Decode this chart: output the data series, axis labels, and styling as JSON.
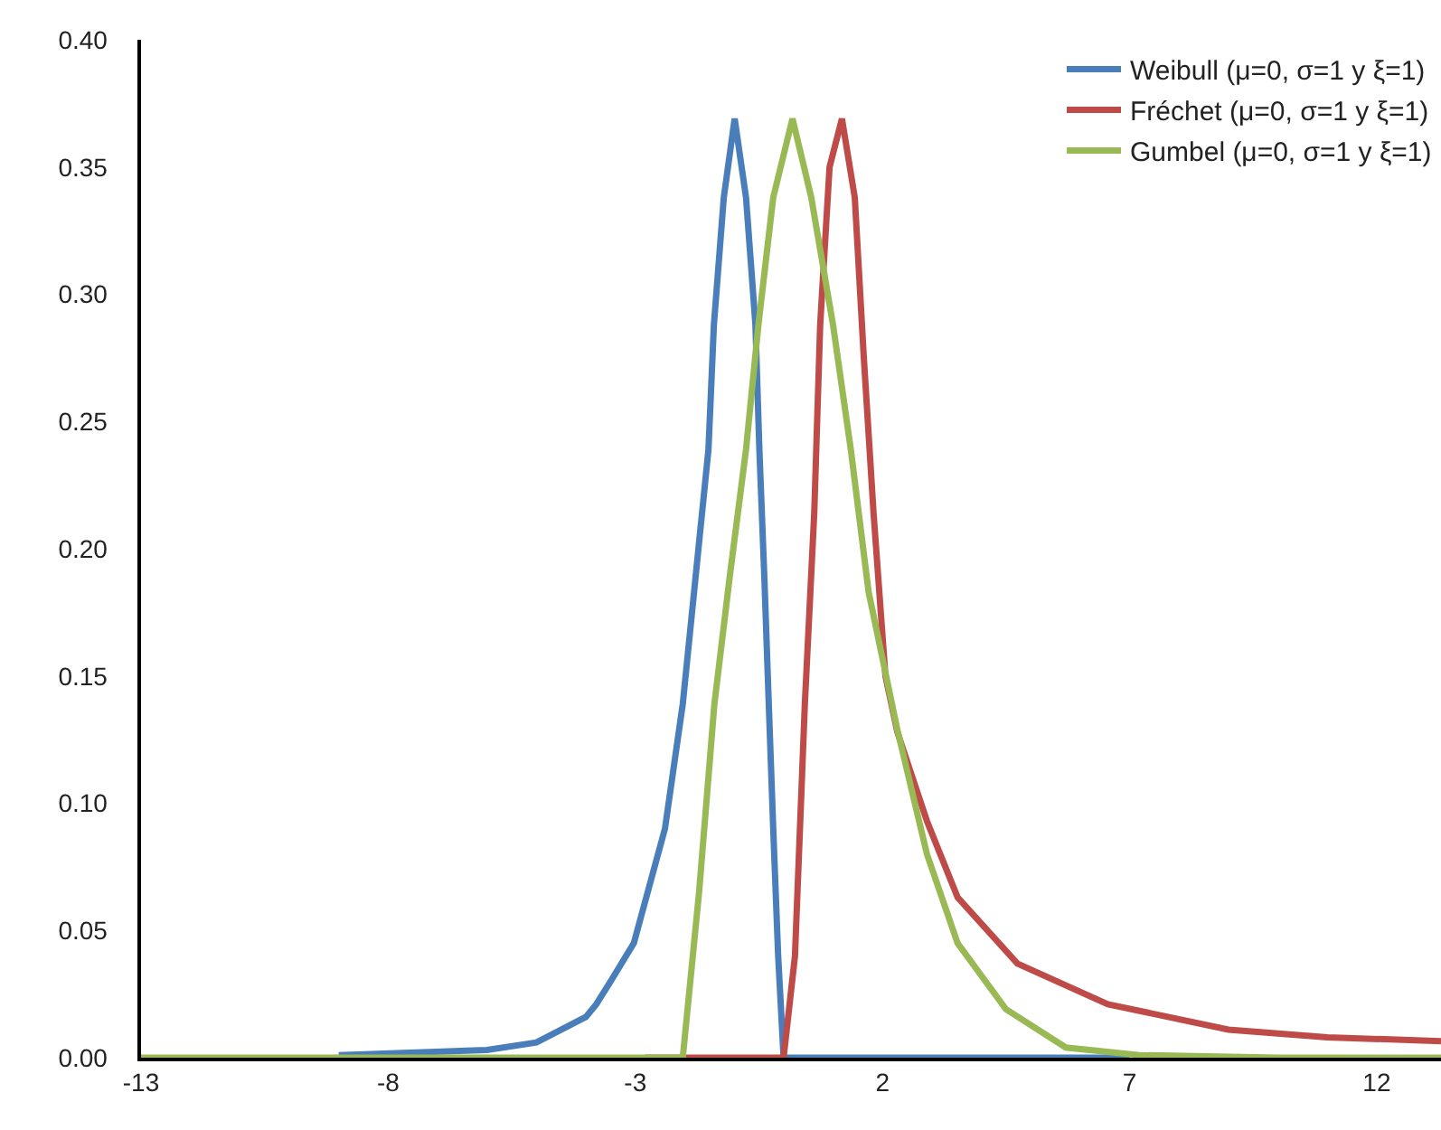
{
  "chart_data": {
    "type": "line",
    "xlim": [
      -13,
      13.3
    ],
    "xticks": [
      -13,
      -8,
      -3,
      2,
      7,
      12
    ],
    "ylim": [
      0,
      0.4
    ],
    "yticks": [
      {
        "value": 0,
        "label": "0.00"
      },
      {
        "value": 0.05,
        "label": "0.05"
      },
      {
        "value": 0.1,
        "label": "0.10"
      },
      {
        "value": 0.15,
        "label": "0.15"
      },
      {
        "value": 0.2,
        "label": "0.20"
      },
      {
        "value": 0.25,
        "label": "0.25"
      },
      {
        "value": 0.3,
        "label": "0.30"
      },
      {
        "value": 0.35,
        "label": "0.35"
      },
      {
        "value": 0.4,
        "label": "0.40"
      }
    ],
    "grid": false,
    "legend": "top right",
    "marker": "none",
    "line_style": "solid",
    "series": [
      {
        "name": "Weibull (μ=0, σ=1 y ξ=1)",
        "color": "#4a7ebb",
        "x": [
          -9,
          -6,
          -5,
          -4,
          -3.79,
          -3.5,
          -3.03,
          -2.4,
          -2.04,
          -1.78,
          -1.52,
          -1.41,
          -1.21,
          -0.99,
          -0.76,
          -0.57,
          -0.49,
          -0.39,
          -0.3,
          -0.21,
          -0.11,
          0,
          1,
          3,
          5,
          7
        ],
        "values": [
          0.001,
          0.003,
          0.006,
          0.016,
          0.021,
          0.03,
          0.045,
          0.09,
          0.139,
          0.189,
          0.239,
          0.288,
          0.338,
          0.369,
          0.338,
          0.288,
          0.239,
          0.189,
          0.139,
          0.09,
          0.04,
          0,
          0,
          0,
          0,
          0
        ]
      },
      {
        "name": "Fréchet (μ=0, σ=1 y ξ=1)",
        "color": "#be4b48",
        "x": [
          -2.8,
          -1,
          0,
          0.23,
          0.43,
          0.62,
          0.74,
          0.93,
          1.18,
          1.44,
          1.62,
          1.82,
          2.06,
          2.3,
          2.9,
          3.52,
          4.73,
          6.56,
          9,
          11,
          13.3
        ],
        "values": [
          0,
          0,
          0,
          0.04,
          0.139,
          0.214,
          0.288,
          0.35,
          0.369,
          0.338,
          0.276,
          0.214,
          0.15,
          0.128,
          0.093,
          0.063,
          0.037,
          0.021,
          0.011,
          0.008,
          0.0065
        ]
      },
      {
        "name": "Gumbel (μ=0, σ=1 y ξ=1)",
        "color": "#98b954",
        "x": [
          -13,
          -8,
          -4,
          -2.04,
          -1.71,
          -1.4,
          -1.09,
          -0.76,
          -0.51,
          -0.21,
          0.18,
          0.56,
          1,
          1.36,
          1.72,
          2.3,
          2.9,
          3.52,
          4.5,
          5.71,
          7.2,
          10,
          13.3
        ],
        "values": [
          0,
          0,
          0,
          0,
          0.065,
          0.139,
          0.189,
          0.239,
          0.288,
          0.338,
          0.369,
          0.338,
          0.288,
          0.239,
          0.183,
          0.129,
          0.08,
          0.045,
          0.019,
          0.004,
          0.001,
          0,
          0
        ]
      }
    ]
  }
}
